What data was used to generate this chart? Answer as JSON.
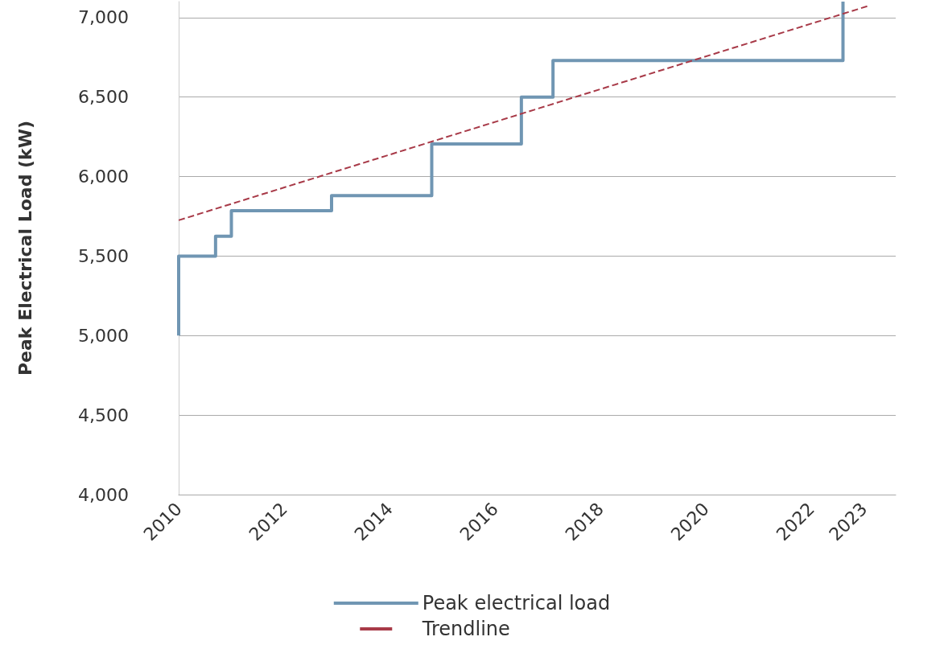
{
  "chart_data": {
    "type": "step",
    "ylabel": "Peak Electrical Load (kW)",
    "xlim": [
      2010,
      2023.6
    ],
    "xticks": [
      2010,
      2012,
      2014,
      2016,
      2018,
      2020,
      2022,
      2023
    ],
    "ylim": [
      4000,
      7100
    ],
    "yticks": [
      {
        "value": 4000,
        "label": "4,000"
      },
      {
        "value": 4500,
        "label": "4,500"
      },
      {
        "value": 5000,
        "label": "5,000"
      },
      {
        "value": 5500,
        "label": "5,500"
      },
      {
        "value": 6000,
        "label": "6,000"
      },
      {
        "value": 6500,
        "label": "6,500"
      },
      {
        "value": 7000,
        "label": "7,000"
      }
    ],
    "grid": "y",
    "legend": "bottom",
    "marker": "none",
    "series": [
      {
        "name": "Peak electrical load",
        "color": "#7096b3",
        "line_style": "solid",
        "x": [
          2010,
          2010,
          2010.7,
          2011,
          2012.9,
          2014.8,
          2016.5,
          2017.1,
          2022.6
        ],
        "values": [
          5000,
          5500,
          5625,
          5785,
          5880,
          6205,
          6500,
          6730,
          7100
        ]
      },
      {
        "name": "Trendline",
        "type": "line",
        "color": "#a83a48",
        "line_style": "dashed",
        "x": [
          2010,
          2023.1
        ],
        "values": [
          5725,
          7075
        ]
      }
    ]
  }
}
